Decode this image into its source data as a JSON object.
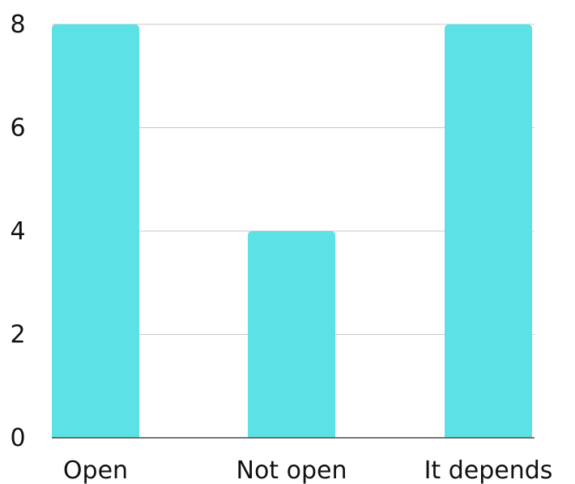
{
  "chart_data": {
    "type": "bar",
    "title": "",
    "xlabel": "",
    "ylabel": "",
    "categories": [
      "Open",
      "Not open",
      "It depends"
    ],
    "values": [
      8,
      4,
      8
    ],
    "ylim": [
      0,
      8
    ],
    "yticks": [
      0,
      2,
      4,
      6,
      8
    ],
    "grid": true,
    "bar_color": "#5ce1e6"
  }
}
